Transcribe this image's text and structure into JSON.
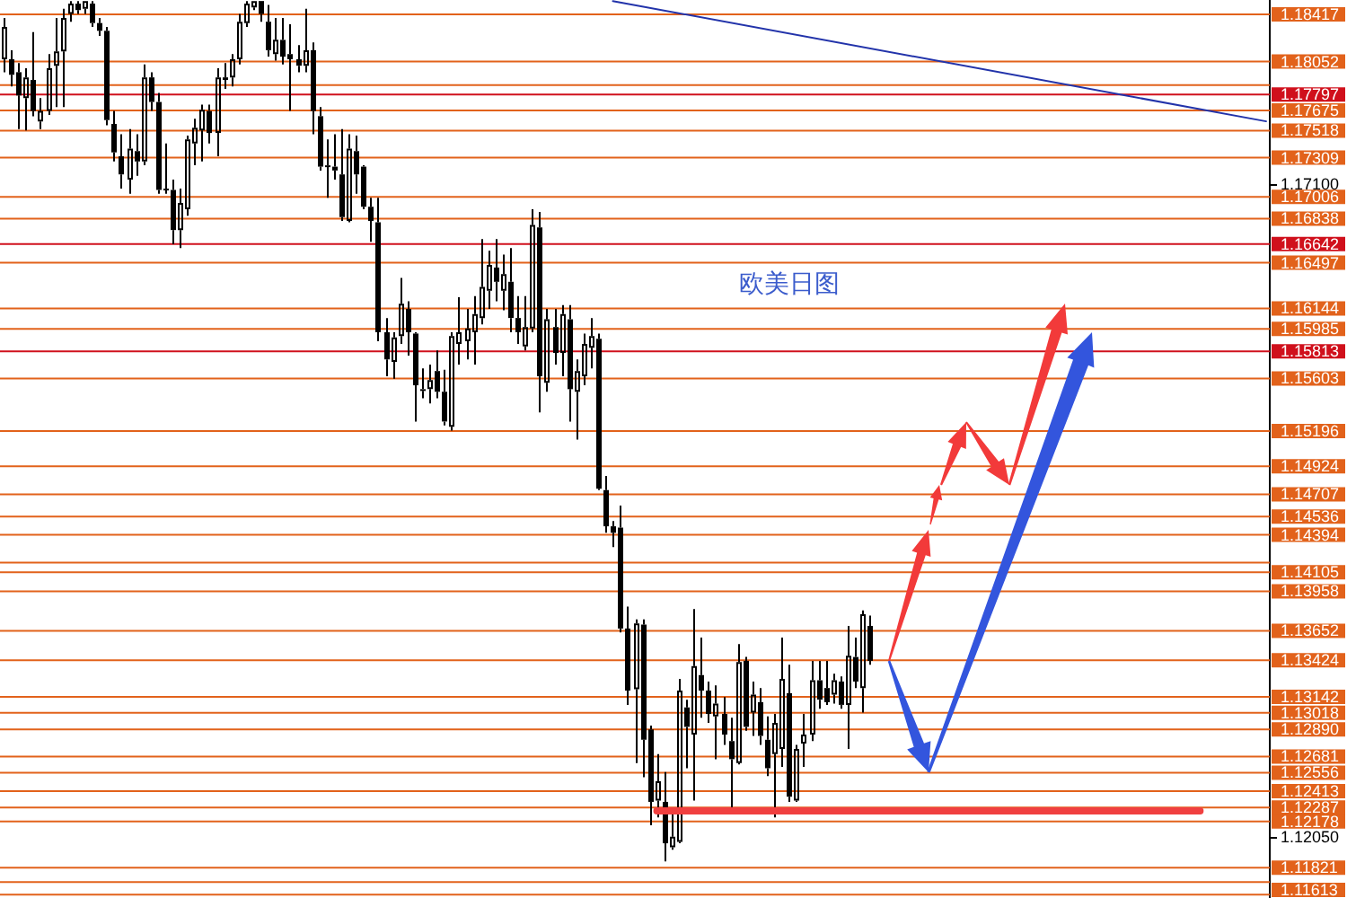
{
  "chart_data": {
    "type": "candlestick",
    "title": "欧美日图",
    "color": "#000000",
    "categories": [
      null,
      null,
      null,
      null,
      null,
      null,
      null,
      null,
      null,
      null,
      null,
      null,
      null,
      null,
      null,
      null,
      null,
      null,
      null,
      null,
      null,
      null,
      null,
      null,
      null,
      null,
      null,
      null,
      null,
      null,
      null,
      null,
      null,
      null,
      null,
      null,
      null,
      null,
      null,
      null,
      null,
      null,
      null,
      null,
      null,
      null,
      null,
      null,
      null,
      null,
      null,
      null,
      null,
      null,
      null,
      null,
      null,
      null,
      null,
      null,
      null,
      null,
      null,
      null,
      null,
      null,
      null,
      null,
      null,
      null,
      null,
      null,
      null,
      null,
      null,
      null,
      null,
      null,
      null,
      null,
      null,
      null,
      null,
      null,
      null,
      null,
      null,
      null,
      null,
      null,
      null,
      null,
      null,
      null,
      null,
      null,
      null,
      null,
      null,
      null,
      null,
      null,
      null,
      null,
      null,
      null,
      null,
      null,
      null,
      null,
      null,
      null,
      null,
      null,
      null,
      null,
      null,
      null,
      null,
      null,
      null,
      null,
      null,
      null,
      null,
      null,
      null,
      null,
      null,
      null,
      null,
      null,
      null,
      null,
      null,
      null,
      null,
      null,
      null,
      null,
      null,
      null,
      null,
      null,
      null,
      null,
      null,
      null,
      null,
      null,
      null,
      null,
      null,
      null,
      null,
      null,
      null,
      null,
      null,
      null,
      null,
      null,
      null,
      null,
      null,
      null,
      null,
      null,
      null,
      null,
      null,
      null,
      null
    ],
    "ohlc": [
      [
        1.1807,
        1.1839,
        1.1797,
        1.1832
      ],
      [
        1.1807,
        1.1814,
        1.1786,
        1.1795
      ],
      [
        1.1797,
        1.1804,
        1.1753,
        1.1779
      ],
      [
        1.1777,
        1.18,
        1.1752,
        1.1793
      ],
      [
        1.1791,
        1.1828,
        1.1763,
        1.1767
      ],
      [
        1.1759,
        1.1777,
        1.1753,
        1.1767
      ],
      [
        1.1767,
        1.1811,
        1.1764,
        1.18
      ],
      [
        1.1802,
        1.1839,
        1.177,
        1.1813
      ],
      [
        1.1813,
        1.1846,
        1.177,
        1.1839
      ],
      [
        1.1842,
        1.1852,
        1.1836,
        1.185
      ],
      [
        1.185,
        1.1852,
        1.1842,
        1.1845
      ],
      [
        1.1846,
        1.1852,
        1.1842,
        1.1852
      ],
      [
        1.185,
        1.1852,
        1.1832,
        1.1835
      ],
      [
        1.1835,
        1.1839,
        1.1825,
        1.1829
      ],
      [
        1.1829,
        1.1832,
        1.1756,
        1.176
      ],
      [
        1.1757,
        1.1767,
        1.1728,
        1.1735
      ],
      [
        1.1732,
        1.1749,
        1.1707,
        1.1718
      ],
      [
        1.1714,
        1.1753,
        1.1703,
        1.1738
      ],
      [
        1.1736,
        1.1749,
        1.1717,
        1.1728
      ],
      [
        1.1728,
        1.1803,
        1.1725,
        1.1793
      ],
      [
        1.1793,
        1.1797,
        1.1767,
        1.1774
      ],
      [
        1.1774,
        1.1781,
        1.1703,
        1.1706
      ],
      [
        1.1707,
        1.1742,
        1.1703,
        1.1707
      ],
      [
        1.1706,
        1.1714,
        1.1664,
        1.1675
      ],
      [
        1.1675,
        1.1707,
        1.1661,
        1.1696
      ],
      [
        1.1691,
        1.1748,
        1.1686,
        1.1745
      ],
      [
        1.1742,
        1.1761,
        1.1725,
        1.1754
      ],
      [
        1.1752,
        1.1772,
        1.1728,
        1.1768
      ],
      [
        1.1767,
        1.1772,
        1.1742,
        1.175
      ],
      [
        1.175,
        1.18,
        1.1732,
        1.1793
      ],
      [
        1.1791,
        1.1804,
        1.1784,
        1.1793
      ],
      [
        1.1793,
        1.1811,
        1.1786,
        1.1807
      ],
      [
        1.1807,
        1.1842,
        1.1803,
        1.1836
      ],
      [
        1.1835,
        1.1852,
        1.1832,
        1.185
      ],
      [
        1.1847,
        1.1852,
        1.1845,
        1.1852
      ],
      [
        1.1852,
        1.1852,
        1.1836,
        1.1842
      ],
      [
        1.1836,
        1.1849,
        1.1809,
        1.1814
      ],
      [
        1.1811,
        1.1839,
        1.1806,
        1.1822
      ],
      [
        1.1822,
        1.1839,
        1.1803,
        1.1809
      ],
      [
        1.1811,
        1.1834,
        1.1767,
        1.1807
      ],
      [
        1.1807,
        1.1818,
        1.1797,
        1.1802
      ],
      [
        1.1802,
        1.1846,
        1.1797,
        1.1814
      ],
      [
        1.1814,
        1.182,
        1.1749,
        1.1767
      ],
      [
        1.1763,
        1.177,
        1.1721,
        1.1724
      ],
      [
        1.1725,
        1.1745,
        1.17,
        1.1725
      ],
      [
        1.1724,
        1.1749,
        1.1714,
        1.1721
      ],
      [
        1.1718,
        1.1753,
        1.1682,
        1.1685
      ],
      [
        1.1682,
        1.1749,
        1.1681,
        1.1738
      ],
      [
        1.1736,
        1.1748,
        1.1703,
        1.1718
      ],
      [
        1.1724,
        1.1725,
        1.1691,
        1.1693
      ],
      [
        1.1693,
        1.17,
        1.1666,
        1.1682
      ],
      [
        1.1681,
        1.17,
        1.1589,
        1.1596
      ],
      [
        1.1596,
        1.1607,
        1.1562,
        1.1575
      ],
      [
        1.1573,
        1.1596,
        1.156,
        1.1592
      ],
      [
        1.1593,
        1.1638,
        1.1587,
        1.1618
      ],
      [
        1.1614,
        1.162,
        1.1578,
        1.1596
      ],
      [
        1.1595,
        1.1596,
        1.1527,
        1.1555
      ],
      [
        1.1552,
        1.1568,
        1.1545,
        1.1552
      ],
      [
        1.1552,
        1.1571,
        1.1541,
        1.1559
      ],
      [
        1.1566,
        1.1582,
        1.1545,
        1.155
      ],
      [
        1.155,
        1.1567,
        1.1524,
        1.1527
      ],
      [
        1.1523,
        1.1596,
        1.152,
        1.1593
      ],
      [
        1.1587,
        1.1623,
        1.1571,
        1.1596
      ],
      [
        1.1589,
        1.1614,
        1.1575,
        1.1599
      ],
      [
        1.1596,
        1.1624,
        1.1571,
        1.161
      ],
      [
        1.1607,
        1.1668,
        1.1602,
        1.1631
      ],
      [
        1.1628,
        1.1659,
        1.1614,
        1.1648
      ],
      [
        1.1646,
        1.1668,
        1.162,
        1.1635
      ],
      [
        1.1628,
        1.1656,
        1.1613,
        1.1641
      ],
      [
        1.1635,
        1.1661,
        1.1596,
        1.1607
      ],
      [
        1.1607,
        1.1624,
        1.1587,
        1.1596
      ],
      [
        1.1585,
        1.1624,
        1.1582,
        1.16
      ],
      [
        1.1599,
        1.1691,
        1.1596,
        1.1679
      ],
      [
        1.1677,
        1.1689,
        1.1534,
        1.1562
      ],
      [
        1.1557,
        1.1614,
        1.155,
        1.1606
      ],
      [
        1.16,
        1.1614,
        1.1571,
        1.158
      ],
      [
        1.158,
        1.1617,
        1.1562,
        1.161
      ],
      [
        1.1606,
        1.1617,
        1.1527,
        1.1552
      ],
      [
        1.155,
        1.1575,
        1.1513,
        1.1566
      ],
      [
        1.1562,
        1.1595,
        1.1555,
        1.1587
      ],
      [
        1.1584,
        1.1607,
        1.1568,
        1.1593
      ],
      [
        1.1591,
        1.1595,
        1.1474,
        1.1475
      ],
      [
        1.1474,
        1.1485,
        1.1441,
        1.1446
      ],
      [
        1.1446,
        1.145,
        1.143,
        1.1441
      ],
      [
        1.1445,
        1.1462,
        1.1364,
        1.1367
      ],
      [
        1.1367,
        1.1384,
        1.1308,
        1.1319
      ],
      [
        1.132,
        1.1374,
        1.1263,
        1.1371
      ],
      [
        1.137,
        1.1374,
        1.1252,
        1.1281
      ],
      [
        1.1289,
        1.1292,
        1.1215,
        1.1233
      ],
      [
        1.1234,
        1.127,
        1.1221,
        1.1249
      ],
      [
        1.1233,
        1.1256,
        1.1187,
        1.1201
      ],
      [
        1.1198,
        1.1228,
        1.1196,
        1.1206
      ],
      [
        1.1202,
        1.1328,
        1.1201,
        1.1319
      ],
      [
        1.1306,
        1.1312,
        1.1259,
        1.1291
      ],
      [
        1.1285,
        1.1382,
        1.1234,
        1.1338
      ],
      [
        1.1331,
        1.136,
        1.1298,
        1.1319
      ],
      [
        1.1319,
        1.1326,
        1.1294,
        1.1301
      ],
      [
        1.1299,
        1.1323,
        1.1266,
        1.1309
      ],
      [
        1.1301,
        1.1314,
        1.1277,
        1.1285
      ],
      [
        1.128,
        1.1298,
        1.1226,
        1.1266
      ],
      [
        1.1263,
        1.1355,
        1.1262,
        1.1341
      ],
      [
        1.1342,
        1.1345,
        1.1288,
        1.1291
      ],
      [
        1.1302,
        1.1326,
        1.1284,
        1.1316
      ],
      [
        1.131,
        1.1321,
        1.1277,
        1.1284
      ],
      [
        1.1281,
        1.1299,
        1.1253,
        1.1259
      ],
      [
        1.127,
        1.1301,
        1.1221,
        1.1294
      ],
      [
        1.1274,
        1.136,
        1.126,
        1.1328
      ],
      [
        1.1317,
        1.1339,
        1.1233,
        1.1237
      ],
      [
        1.1234,
        1.1277,
        1.1233,
        1.1274
      ],
      [
        1.1278,
        1.1301,
        1.126,
        1.1285
      ],
      [
        1.1285,
        1.1342,
        1.128,
        1.1327
      ],
      [
        1.1327,
        1.1342,
        1.1305,
        1.1312
      ],
      [
        1.1321,
        1.1342,
        1.1308,
        1.131
      ],
      [
        1.1316,
        1.1332,
        1.1309,
        1.1327
      ],
      [
        1.1326,
        1.133,
        1.1305,
        1.1308
      ],
      [
        1.1308,
        1.1369,
        1.1274,
        1.1346
      ],
      [
        1.1345,
        1.136,
        1.1321,
        1.1326
      ],
      [
        1.1321,
        1.1381,
        1.1302,
        1.1378
      ],
      [
        1.1369,
        1.1377,
        1.1339,
        1.1342
      ],
      null,
      null,
      null,
      null,
      null,
      null,
      null,
      null,
      null,
      null,
      null,
      null,
      null,
      null,
      null,
      null,
      null,
      null,
      null,
      null,
      null,
      null,
      null,
      null,
      null,
      null,
      null,
      null,
      null,
      null,
      null,
      null,
      null,
      null,
      null,
      null,
      null,
      null,
      null,
      null,
      null,
      null,
      null,
      null,
      null,
      null,
      null,
      null,
      null,
      null,
      null,
      null,
      null,
      null
    ],
    "series": [
      {
        "type": "line",
        "color": "#f04040",
        "values": [
          null,
          null,
          null,
          null,
          null,
          null,
          null,
          null,
          null,
          null,
          null,
          null,
          null,
          null,
          null,
          null,
          null,
          null,
          null,
          null,
          null,
          null,
          null,
          null,
          null,
          null,
          null,
          null,
          null,
          null,
          null,
          null,
          null,
          null,
          null,
          null,
          null,
          null,
          null,
          null,
          null,
          null,
          null,
          null,
          null,
          null,
          null,
          null,
          null,
          null,
          null,
          null,
          null,
          null,
          null,
          null,
          null,
          null,
          null,
          null,
          null,
          null,
          null,
          null,
          null,
          null,
          null,
          null,
          null,
          null,
          null,
          null,
          null,
          null,
          null,
          null,
          null,
          null,
          null,
          null,
          null,
          null,
          null,
          null,
          null,
          null,
          null,
          null,
          null,
          1.1226,
          1.1226,
          1.1226,
          1.1226,
          1.1226,
          1.1226,
          1.1226,
          1.1226,
          1.1226,
          1.1226,
          1.1226,
          1.1226,
          1.1226,
          1.1226,
          1.1226,
          1.1226,
          1.1226,
          1.1226,
          1.1226,
          1.1226,
          1.1226,
          1.1226,
          1.1226,
          1.1226,
          1.1226,
          1.1226,
          1.1226,
          1.1226,
          1.1226,
          1.1226,
          1.1226,
          1.1226,
          1.1226,
          1.1226,
          1.1226,
          1.1226,
          1.1226,
          1.1226,
          1.1226,
          1.1226,
          1.1226,
          1.1226,
          1.1226,
          1.1226,
          1.1226,
          1.1226,
          1.1226,
          1.1226,
          1.1226,
          1.1226,
          1.1226,
          1.1226,
          1.1226,
          1.1226,
          1.1226,
          1.1226,
          1.1226,
          1.1226,
          1.1226,
          1.1226,
          1.1226,
          1.1226,
          1.1226,
          1.1226,
          1.1226,
          1.1226,
          1.1226,
          1.1226,
          1.1226,
          1.1226,
          1.1226,
          1.1226,
          1.1226,
          1.1226,
          1.1226,
          null,
          null,
          null,
          null,
          null,
          null,
          null,
          null,
          null
        ]
      },
      {
        "type": "line",
        "color": "#2233aa",
        "values": [
          null,
          null,
          null,
          null,
          null,
          null,
          null,
          null,
          null,
          null,
          null,
          null,
          null,
          null,
          null,
          null,
          null,
          null,
          null,
          null,
          null,
          null,
          null,
          null,
          null,
          null,
          null,
          null,
          null,
          null,
          null,
          null,
          null,
          null,
          null,
          null,
          null,
          null,
          null,
          null,
          null,
          null,
          null,
          null,
          null,
          null,
          null,
          null,
          null,
          null,
          null,
          null,
          null,
          null,
          null,
          null,
          null,
          null,
          null,
          null,
          null,
          null,
          null,
          null,
          null,
          null,
          null,
          null,
          null,
          null,
          null,
          null,
          null,
          null,
          null,
          null,
          null,
          null,
          null,
          null,
          null,
          null,
          null,
          1.1852,
          null,
          null,
          null,
          null,
          null,
          null,
          null,
          null,
          null,
          null,
          null,
          null,
          null,
          null,
          null,
          null,
          null,
          null,
          null,
          null,
          null,
          null,
          null,
          null,
          null,
          null,
          null,
          null,
          null,
          null,
          null,
          null,
          null,
          null,
          null,
          null,
          null,
          null,
          null,
          null,
          null,
          null,
          null,
          null,
          null,
          null,
          null,
          null,
          null,
          null,
          null,
          null,
          null,
          null,
          null,
          null,
          null,
          null,
          null,
          null,
          null,
          null,
          null,
          null,
          null,
          null,
          null,
          null,
          null,
          null,
          null,
          null,
          null,
          null,
          null,
          null,
          null,
          null,
          null,
          null,
          null,
          null,
          null,
          null,
          null,
          null,
          null,
          null,
          1.1759
        ]
      }
    ],
    "ylim": [
      1.11587,
      1.18528
    ],
    "yticks": [
      {
        "value": 1.171,
        "label": "1.17100"
      },
      {
        "value": 1.1205,
        "label": "1.12050"
      }
    ],
    "tick_labels": "y",
    "grid": false,
    "legend": false,
    "ref_lines": [
      {
        "axis": "y",
        "value": 1.18417,
        "label": "1.18417",
        "color": "#e2621b"
      },
      {
        "axis": "y",
        "value": 1.18052,
        "label": "1.18052",
        "color": "#e2621b"
      },
      {
        "axis": "y",
        "value": 1.1787,
        "color": "#e2621b"
      },
      {
        "axis": "y",
        "value": 1.17797,
        "label": "1.17797",
        "color": "#d0101c"
      },
      {
        "axis": "y",
        "value": 1.17675,
        "label": "1.17675",
        "color": "#e2621b"
      },
      {
        "axis": "y",
        "value": 1.17518,
        "label": "1.17518",
        "color": "#e2621b"
      },
      {
        "axis": "y",
        "value": 1.17309,
        "label": "1.17309",
        "color": "#e2621b"
      },
      {
        "axis": "y",
        "value": 1.17006,
        "label": "1.17006",
        "color": "#e2621b"
      },
      {
        "axis": "y",
        "value": 1.16838,
        "label": "1.16838",
        "color": "#e2621b"
      },
      {
        "axis": "y",
        "value": 1.16642,
        "label": "1.16642",
        "color": "#d0101c"
      },
      {
        "axis": "y",
        "value": 1.16497,
        "label": "1.16497",
        "color": "#e2621b"
      },
      {
        "axis": "y",
        "value": 1.16144,
        "label": "1.16144",
        "color": "#e2621b"
      },
      {
        "axis": "y",
        "value": 1.15985,
        "label": "1.15985",
        "color": "#e2621b"
      },
      {
        "axis": "y",
        "value": 1.15813,
        "label": "1.15813",
        "color": "#d0101c"
      },
      {
        "axis": "y",
        "value": 1.15603,
        "label": "1.15603",
        "color": "#e2621b"
      },
      {
        "axis": "y",
        "value": 1.15196,
        "label": "1.15196",
        "color": "#e2621b"
      },
      {
        "axis": "y",
        "value": 1.14924,
        "label": "1.14924",
        "color": "#e2621b"
      },
      {
        "axis": "y",
        "value": 1.14707,
        "label": "1.14707",
        "color": "#e2621b"
      },
      {
        "axis": "y",
        "value": 1.14536,
        "label": "1.14536",
        "color": "#e2621b"
      },
      {
        "axis": "y",
        "value": 1.14394,
        "label": "1.14394",
        "color": "#e2621b"
      },
      {
        "axis": "y",
        "value": 1.1418,
        "color": "#e2621b"
      },
      {
        "axis": "y",
        "value": 1.14105,
        "label": "1.14105",
        "color": "#e2621b"
      },
      {
        "axis": "y",
        "value": 1.13958,
        "label": "1.13958",
        "color": "#e2621b"
      },
      {
        "axis": "y",
        "value": 1.13652,
        "label": "1.13652",
        "color": "#e2621b"
      },
      {
        "axis": "y",
        "value": 1.13424,
        "label": "1.13424",
        "color": "#e2621b"
      },
      {
        "axis": "y",
        "value": 1.13142,
        "label": "1.13142",
        "color": "#e2621b"
      },
      {
        "axis": "y",
        "value": 1.13018,
        "label": "1.13018",
        "color": "#e2621b"
      },
      {
        "axis": "y",
        "value": 1.1289,
        "label": "1.12890",
        "color": "#e2621b"
      },
      {
        "axis": "y",
        "value": 1.12681,
        "label": "1.12681",
        "color": "#e2621b"
      },
      {
        "axis": "y",
        "value": 1.12556,
        "label": "1.12556",
        "color": "#e2621b"
      },
      {
        "axis": "y",
        "value": 1.12413,
        "label": "1.12413",
        "color": "#e2621b"
      },
      {
        "axis": "y",
        "value": 1.12287,
        "label": "1.12287",
        "color": "#e2621b"
      },
      {
        "axis": "y",
        "value": 1.12178,
        "label": "1.12178",
        "color": "#e2621b"
      },
      {
        "axis": "y",
        "value": 1.11821,
        "label": "1.11821",
        "color": "#e2621b"
      },
      {
        "axis": "y",
        "value": 1.1171,
        "color": "#e2621b"
      },
      {
        "axis": "y",
        "value": 1.11613,
        "label": "1.11613",
        "color": "#e2621b"
      }
    ]
  }
}
